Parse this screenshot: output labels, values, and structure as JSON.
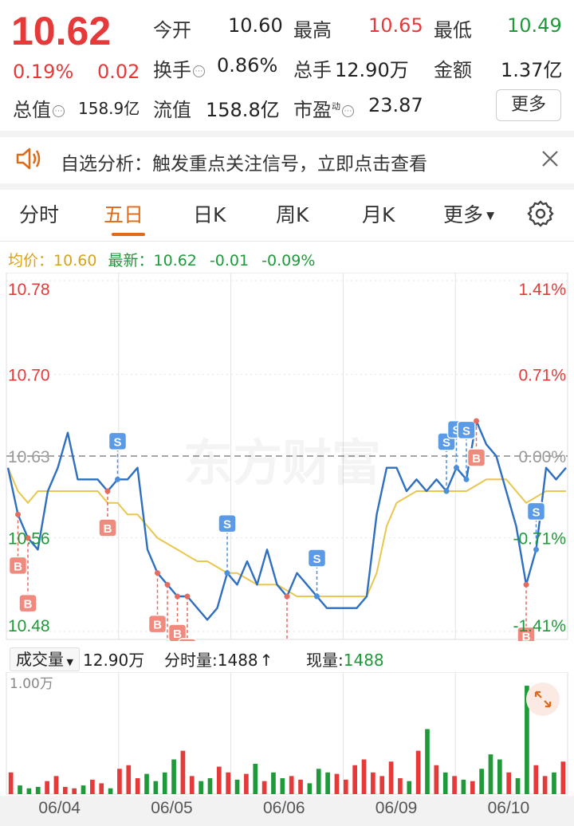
{
  "quote": {
    "price": "10.62",
    "change_pct": "0.19%",
    "change_abs": "0.02",
    "open_label": "今开",
    "open_value": "10.60",
    "high_label": "最高",
    "high_value": "10.65",
    "low_label": "最低",
    "low_value": "10.49",
    "turnover_label": "换手",
    "turnover_value": "0.86%",
    "volume_label": "总手",
    "volume_value": "12.90万",
    "amount_label": "金额",
    "amount_value": "1.37亿",
    "mcap_label": "总值",
    "mcap_value": "158.9亿",
    "float_label": "流值",
    "float_value": "158.8亿",
    "pe_label": "市盈",
    "pe_sup": "动",
    "pe_value": "23.87",
    "more_label": "更多"
  },
  "banner": {
    "text": "自选分析：触发重点关注信号，立即点击查看",
    "close_icon": "close-icon",
    "sound_icon": "speaker-icon"
  },
  "tabs": {
    "items": [
      "分时",
      "五日",
      "日K",
      "周K",
      "月K",
      "更多"
    ],
    "active_index": 1,
    "settings_icon": "gear-icon"
  },
  "avg": {
    "avg_label": "均价：",
    "avg_value": "10.60",
    "latest_label": "最新：",
    "latest_value": "10.62",
    "latest_change": "-0.01",
    "latest_pct": "-0.09%"
  },
  "watermark": "东方财富",
  "chart_data": {
    "type": "line",
    "title": "",
    "days": [
      "06/04",
      "06/05",
      "06/06",
      "06/09",
      "06/10"
    ],
    "y_left_ticks": [
      "10.78",
      "10.70",
      "10.63",
      "10.56",
      "10.48"
    ],
    "y_right_ticks": [
      "1.41%",
      "0.71%",
      "0.00%",
      "-0.71%",
      "-1.41%"
    ],
    "ylim": [
      10.48,
      10.78
    ],
    "reference_price": 10.63,
    "series": [
      {
        "values": [
          10.62,
          10.58,
          10.56,
          10.55,
          10.6,
          10.62,
          10.65,
          10.61,
          10.61,
          10.61,
          10.6,
          10.61,
          10.61,
          10.62,
          10.55,
          10.53,
          10.52,
          10.51,
          10.51,
          10.5,
          10.49,
          10.5,
          10.53,
          10.52,
          10.54,
          10.52,
          10.55,
          10.52,
          10.51,
          10.53,
          10.52,
          10.51,
          10.5,
          10.5,
          10.5,
          10.5,
          10.51,
          10.58,
          10.62,
          10.62,
          10.6,
          10.61,
          10.6,
          10.61,
          10.6,
          10.62,
          10.61,
          10.66,
          10.64,
          10.63,
          10.6,
          10.57,
          10.52,
          10.55,
          10.62,
          10.61,
          10.62
        ]
      },
      {
        "values": [
          10.62,
          10.6,
          10.59,
          10.6,
          10.6,
          10.6,
          10.6,
          10.6,
          10.6,
          10.6,
          10.59,
          10.59,
          10.58,
          10.58,
          10.57,
          10.56,
          10.555,
          10.55,
          10.545,
          10.54,
          10.54,
          10.535,
          10.53,
          10.53,
          10.525,
          10.52,
          10.52,
          10.52,
          10.515,
          10.51,
          10.51,
          10.51,
          10.51,
          10.51,
          10.51,
          10.51,
          10.51,
          10.53,
          10.57,
          10.59,
          10.595,
          10.6,
          10.6,
          10.6,
          10.6,
          10.6,
          10.6,
          10.605,
          10.61,
          10.61,
          10.61,
          10.6,
          10.59,
          10.595,
          10.6,
          10.6,
          10.6
        ]
      }
    ],
    "trade_markers": [
      {
        "type": "S",
        "i": 11
      },
      {
        "type": "S",
        "i": 22
      },
      {
        "type": "S",
        "i": 31
      },
      {
        "type": "S",
        "i": 44
      },
      {
        "type": "S",
        "i": 45
      },
      {
        "type": "S",
        "i": 46
      },
      {
        "type": "S",
        "i": 53
      },
      {
        "type": "B",
        "i": 1
      },
      {
        "type": "B",
        "i": 2
      },
      {
        "type": "B",
        "i": 10
      },
      {
        "type": "B",
        "i": 15
      },
      {
        "type": "B",
        "i": 16
      },
      {
        "type": "B",
        "i": 17
      },
      {
        "type": "B",
        "i": 18
      },
      {
        "type": "B",
        "i": 28
      },
      {
        "type": "B",
        "i": 47
      },
      {
        "type": "B",
        "i": 52
      }
    ]
  },
  "volume": {
    "label": "成交量",
    "total": "12.90万",
    "tick_label": "分时量:",
    "tick_value": "1488",
    "current_label": "现量:",
    "current_value": "1488",
    "scale_label": "1.00万",
    "expand_icon": "expand-icon",
    "bars": [
      30,
      12,
      8,
      10,
      18,
      25,
      10,
      8,
      12,
      20,
      15,
      8,
      35,
      40,
      22,
      28,
      18,
      30,
      48,
      60,
      25,
      18,
      22,
      38,
      30,
      20,
      28,
      42,
      18,
      30,
      22,
      25,
      20,
      15,
      35,
      30,
      28,
      20,
      40,
      48,
      30,
      25,
      45,
      22,
      18,
      60,
      90,
      40,
      30,
      25,
      20,
      18,
      35,
      55,
      48,
      30,
      22,
      150,
      40,
      25,
      30,
      45
    ]
  }
}
